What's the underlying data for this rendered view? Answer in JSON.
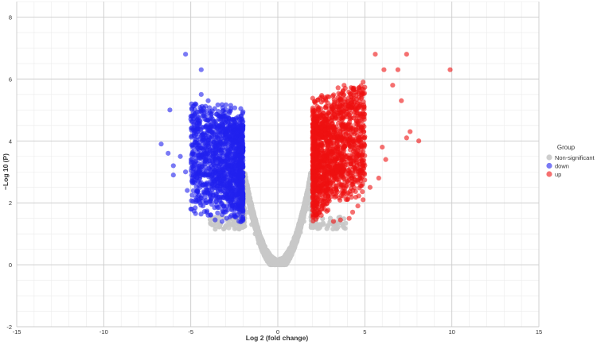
{
  "chart_data": {
    "type": "scatter",
    "title": "",
    "xlabel": "Log 2 (fold change)",
    "ylabel": "−Log 10 (P)",
    "xlim": [
      -15,
      15
    ],
    "ylim": [
      -2,
      8.5
    ],
    "xticks": [
      -15,
      -10,
      -5,
      0,
      5,
      10,
      15
    ],
    "yticks": [
      -2,
      0,
      2,
      4,
      6,
      8
    ],
    "tick_labels_x": [
      "-15",
      "-10",
      "-5",
      "0",
      "5",
      "10",
      "15"
    ],
    "tick_labels_y": [
      "-2",
      "0",
      "2",
      "4",
      "6",
      "8"
    ],
    "grid": true,
    "legend": {
      "title": "Group",
      "position": "right",
      "entries": [
        "Non-significant",
        "down",
        "up"
      ]
    },
    "colors": {
      "Non-significant": "#c8c8c8",
      "down": "#2222ee",
      "up": "#ee1111",
      "grid_major": "#cccccc",
      "grid_minor": "#ebebeb",
      "axis_text": "#333333"
    },
    "series": [
      {
        "name": "Non-significant",
        "color": "#c8c8c8",
        "note_shape": "V-shaped cloud for |log2FC| < ~2, -log10P 0 to ~3.8",
        "points": [
          [
            0.0,
            0.02
          ],
          [
            -0.3,
            0.1
          ],
          [
            0.3,
            0.12
          ],
          [
            -0.6,
            0.25
          ],
          [
            0.6,
            0.28
          ],
          [
            -0.9,
            0.45
          ],
          [
            0.9,
            0.5
          ],
          [
            -1.1,
            0.7
          ],
          [
            1.1,
            0.75
          ],
          [
            -1.3,
            1.0
          ],
          [
            1.3,
            1.05
          ],
          [
            -1.5,
            1.3
          ],
          [
            1.5,
            1.4
          ],
          [
            -1.7,
            1.7
          ],
          [
            1.7,
            1.8
          ],
          [
            -1.9,
            2.1
          ],
          [
            1.9,
            2.2
          ],
          [
            -2.0,
            2.6
          ],
          [
            2.0,
            2.7
          ],
          [
            -2.1,
            3.1
          ],
          [
            2.1,
            3.2
          ],
          [
            -2.2,
            3.6
          ],
          [
            2.2,
            3.7
          ],
          [
            -2.5,
            1.3
          ],
          [
            2.6,
            1.35
          ],
          [
            -3.0,
            1.25
          ],
          [
            3.2,
            1.3
          ],
          [
            -3.6,
            1.25
          ],
          [
            3.8,
            1.2
          ],
          [
            -2.8,
            1.45
          ]
        ]
      },
      {
        "name": "down",
        "color": "#2222ee",
        "note_shape": "dense cluster log2FC -2 to -5.5, -log10P 1.4 to 5.2, with sparse outliers",
        "points": [
          [
            -5.3,
            6.8
          ],
          [
            -4.4,
            6.3
          ],
          [
            -6.2,
            5.0
          ],
          [
            -4.4,
            5.5
          ],
          [
            -4.0,
            5.3
          ],
          [
            -3.9,
            4.9
          ],
          [
            -5.0,
            4.7
          ],
          [
            -6.7,
            3.9
          ],
          [
            -6.3,
            3.6
          ],
          [
            -6.0,
            3.2
          ],
          [
            -6.0,
            2.9
          ],
          [
            -5.6,
            3.5
          ],
          [
            -5.3,
            3.0
          ],
          [
            -5.2,
            2.4
          ],
          [
            -5.0,
            1.8
          ],
          [
            -4.6,
            2.2
          ],
          [
            -4.3,
            1.9
          ],
          [
            -4.0,
            1.6
          ],
          [
            -3.6,
            1.45
          ],
          [
            -3.2,
            1.4
          ],
          [
            -2.5,
            1.6
          ],
          [
            -2.3,
            2.0
          ],
          [
            -2.2,
            3.5
          ],
          [
            -2.4,
            4.1
          ],
          [
            -2.7,
            4.5
          ],
          [
            -3.1,
            4.8
          ],
          [
            -3.5,
            4.4
          ],
          [
            -2.9,
            3.6
          ],
          [
            -3.3,
            3.0
          ],
          [
            -3.8,
            2.6
          ]
        ]
      },
      {
        "name": "up",
        "color": "#ee1111",
        "note_shape": "dense cluster log2FC 2 to 6, -log10P 1.4 to 5.8, with sparse outliers",
        "points": [
          [
            9.9,
            6.3
          ],
          [
            7.4,
            6.8
          ],
          [
            6.9,
            6.3
          ],
          [
            6.1,
            6.3
          ],
          [
            5.6,
            6.8
          ],
          [
            6.6,
            5.8
          ],
          [
            7.1,
            5.3
          ],
          [
            8.1,
            4.0
          ],
          [
            7.6,
            4.3
          ],
          [
            7.4,
            4.1
          ],
          [
            6.2,
            3.4
          ],
          [
            6.0,
            3.8
          ],
          [
            5.8,
            2.8
          ],
          [
            5.3,
            2.5
          ],
          [
            4.9,
            2.1
          ],
          [
            4.6,
            1.9
          ],
          [
            4.3,
            1.7
          ],
          [
            4.1,
            1.5
          ],
          [
            3.6,
            1.45
          ],
          [
            3.2,
            1.4
          ],
          [
            2.5,
            1.6
          ],
          [
            2.3,
            2.1
          ],
          [
            2.2,
            3.6
          ],
          [
            2.4,
            4.2
          ],
          [
            2.7,
            4.7
          ],
          [
            3.1,
            5.1
          ],
          [
            3.6,
            5.5
          ],
          [
            4.3,
            5.7
          ],
          [
            4.9,
            5.9
          ],
          [
            3.4,
            4.0
          ]
        ]
      }
    ]
  }
}
